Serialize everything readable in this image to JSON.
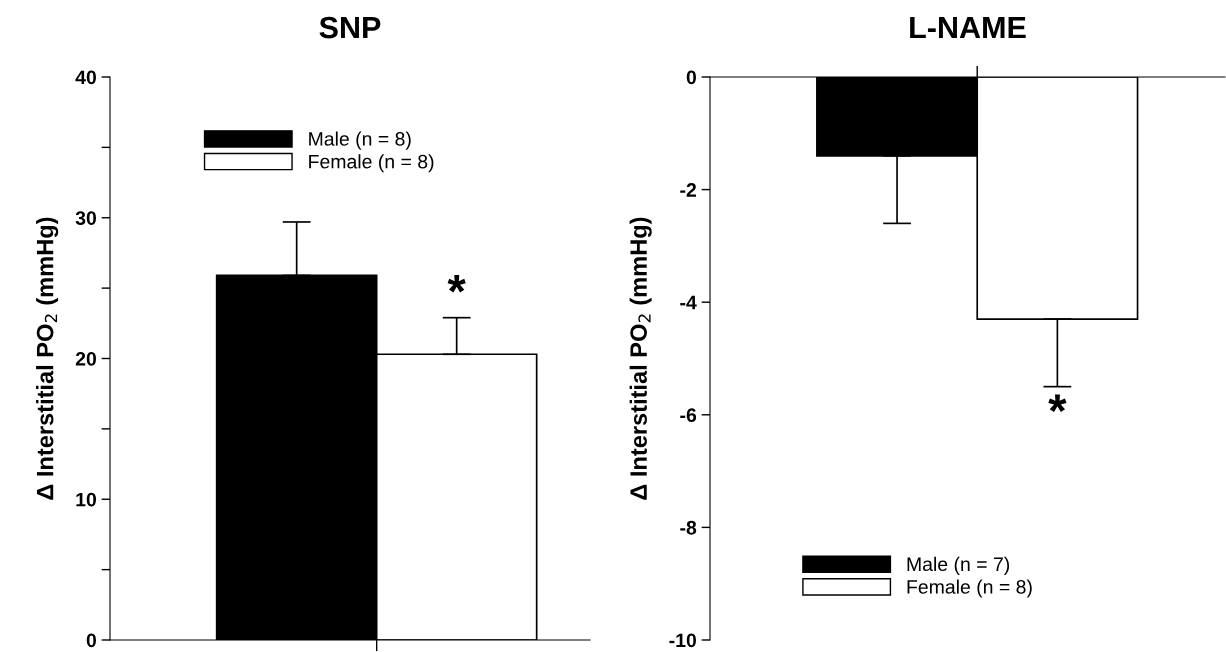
{
  "chart_data": [
    {
      "type": "bar",
      "title": "SNP",
      "ylabel": "Δ Interstitial PO$_{2}$ (mmHg)",
      "categories": [
        null
      ],
      "series": [
        {
          "name": "Male (n = 8)",
          "color": "#000000",
          "values": [
            25.9
          ],
          "errors": [
            [
              25.9,
              29.7
            ]
          ]
        },
        {
          "name": "Female (n = 8)",
          "color": "#ffffff",
          "values": [
            20.3
          ],
          "errors": [
            [
              20.3,
              22.9
            ]
          ]
        }
      ],
      "ylim": [
        0,
        40
      ],
      "yticks": [
        0,
        {
          "value": 5,
          "label": null
        },
        10,
        {
          "value": 15,
          "label": null
        },
        20,
        {
          "value": 25,
          "label": null
        },
        30,
        {
          "value": 35,
          "label": null
        },
        40
      ],
      "annotations": [
        "*"
      ],
      "legend": "top left",
      "grid": false
    },
    {
      "type": "bar",
      "title": "L-NAME",
      "ylabel": "Δ Interstitial PO$_{2}$ (mmHg)",
      "categories": [
        null
      ],
      "series": [
        {
          "name": "Male (n = 7)",
          "color": "#000000",
          "values": [
            -1.4
          ],
          "errors": [
            [
              -2.6,
              -1.4
            ]
          ]
        },
        {
          "name": "Female (n = 8)",
          "color": "#ffffff",
          "values": [
            -4.3
          ],
          "errors": [
            [
              -5.5,
              -4.3
            ]
          ]
        }
      ],
      "ylim": [
        -10,
        0
      ],
      "yticks": [
        -10,
        -8,
        -6,
        -4,
        -2,
        0
      ],
      "annotations": [
        "*"
      ],
      "legend": "bottom left",
      "grid": false
    }
  ]
}
